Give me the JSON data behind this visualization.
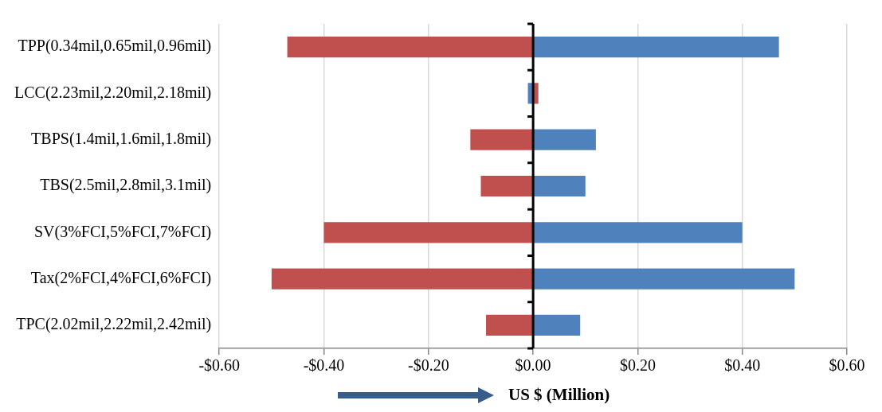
{
  "chart_data": {
    "type": "bar",
    "orientation": "horizontal",
    "stacked": true,
    "xlabel": "US $ (Million)",
    "categories": [
      "TPP(0.34mil,0.65mil,0.96mil)",
      "LCC(2.23mil,2.20mil,2.18mil)",
      "TBPS(1.4mil,1.6mil,1.8mil)",
      "TBS(2.5mil,2.8mil,3.1mil)",
      "SV(3%FCI,5%FCI,7%FCI)",
      "Tax(2%FCI,4%FCI,6%FCI)",
      "TPC(2.02mil,2.22mil,2.42mil)"
    ],
    "series": [
      {
        "color": "#c0504d",
        "values": [
          -0.47,
          0.01,
          -0.12,
          -0.1,
          -0.4,
          -0.5,
          -0.09
        ]
      },
      {
        "color": "#4f81bd",
        "values": [
          0.47,
          -0.01,
          0.12,
          0.1,
          0.4,
          0.5,
          0.09
        ]
      }
    ],
    "xlim": [
      -0.6,
      0.6
    ],
    "xticks": [
      {
        "value": -0.6,
        "label": "-$0.60"
      },
      {
        "value": -0.4,
        "label": "-$0.40"
      },
      {
        "value": -0.2,
        "label": "-$0.20"
      },
      {
        "value": 0,
        "label": "$0.00"
      },
      {
        "value": 0.2,
        "label": "$0.20"
      },
      {
        "value": 0.4,
        "label": "$0.40"
      },
      {
        "value": 0.6,
        "label": "$0.60"
      }
    ],
    "grid": "x",
    "legend": false
  }
}
